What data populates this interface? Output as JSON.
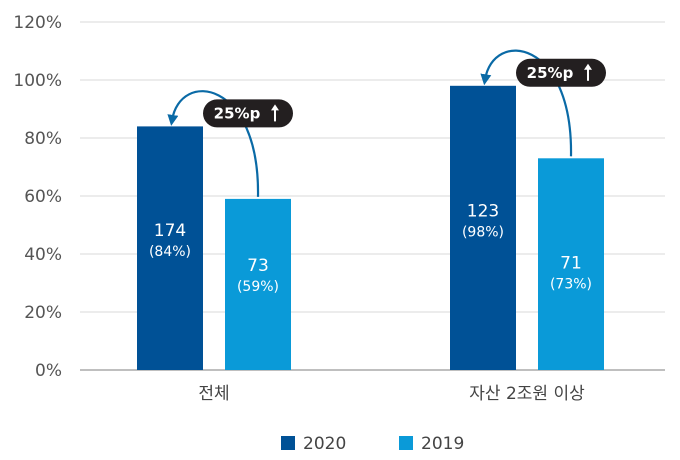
{
  "chart_data": {
    "type": "bar",
    "categories": [
      "전체",
      "자산 2조원 이상"
    ],
    "series": [
      {
        "name": "2020",
        "values": [
          84,
          98
        ],
        "labels": [
          "174",
          "123"
        ],
        "pct_labels": [
          "(84%)",
          "(98%)"
        ],
        "color": "#005196"
      },
      {
        "name": "2019",
        "values": [
          59,
          73
        ],
        "labels": [
          "73",
          "71"
        ],
        "pct_labels": [
          "(59%)",
          "(73%)"
        ],
        "color": "#0a9ad8"
      }
    ],
    "y_ticks": [
      "0%",
      "20%",
      "40%",
      "60%",
      "80%",
      "100%",
      "120%"
    ],
    "ylim": [
      0,
      120
    ],
    "grid": true,
    "legend_position": "bottom",
    "annotations": [
      "25%p",
      "25%p"
    ],
    "annotation_color": "#231f20",
    "arrow_color": "#0a6aa6"
  }
}
